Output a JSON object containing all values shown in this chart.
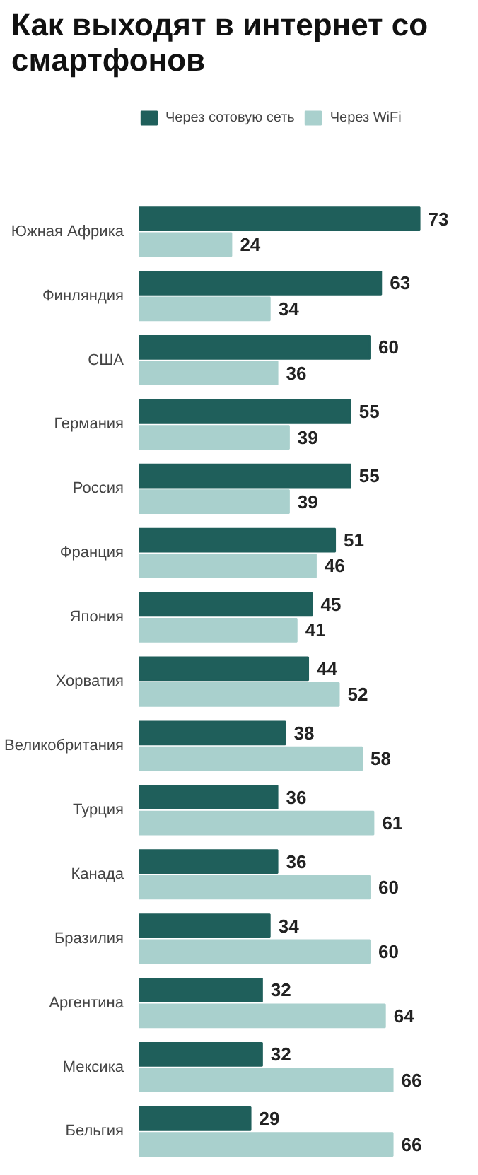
{
  "chart_data": {
    "type": "bar",
    "orientation": "horizontal",
    "title": "Как выходят в интернет со смартфонов",
    "categories": [
      "Южная Африка",
      "Финляндия",
      "США",
      "Германия",
      "Россия",
      "Франция",
      "Япония",
      "Хорватия",
      "Великобритания",
      "Турция",
      "Канада",
      "Бразилия",
      "Аргентина",
      "Мексика",
      "Бельгия"
    ],
    "series": [
      {
        "name": "Через сотовую сеть",
        "color": "#1f5f5b",
        "values": [
          73,
          63,
          60,
          55,
          55,
          51,
          45,
          44,
          38,
          36,
          36,
          34,
          32,
          32,
          29
        ]
      },
      {
        "name": "Через WiFi",
        "color": "#a9d0cd",
        "values": [
          24,
          34,
          36,
          39,
          39,
          46,
          41,
          52,
          58,
          61,
          60,
          60,
          64,
          66,
          66
        ]
      }
    ],
    "tick_labels": "y",
    "data_labels": true,
    "legend": "top left",
    "grid": false
  }
}
